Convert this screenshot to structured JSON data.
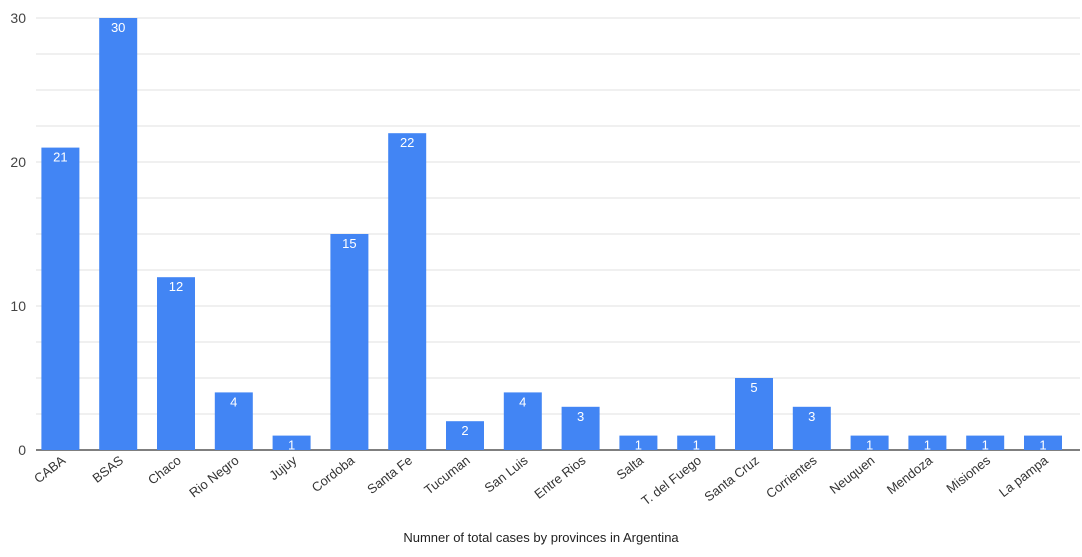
{
  "chart_data": {
    "type": "bar",
    "title": "",
    "xlabel": "Numner of total cases by provinces in Argentina",
    "ylabel": "",
    "ylim": [
      0,
      30
    ],
    "yticks": [
      0,
      10,
      20,
      30
    ],
    "grid": true,
    "legend": "none",
    "bar_color": "#4285f4",
    "grid_color": "#e0e0e0",
    "categories": [
      "CABA",
      "BSAS",
      "Chaco",
      "Rio Negro",
      "Jujuy",
      "Cordoba",
      "Santa Fe",
      "Tucuman",
      "San Luis",
      "Entre Rios",
      "Salta",
      "T. del Fuego",
      "Santa Cruz",
      "Corrientes",
      "Neuquen",
      "Mendoza",
      "Misiones",
      "La pampa"
    ],
    "values": [
      21,
      30,
      12,
      4,
      1,
      15,
      22,
      2,
      4,
      3,
      1,
      1,
      5,
      3,
      1,
      1,
      1,
      1
    ]
  }
}
